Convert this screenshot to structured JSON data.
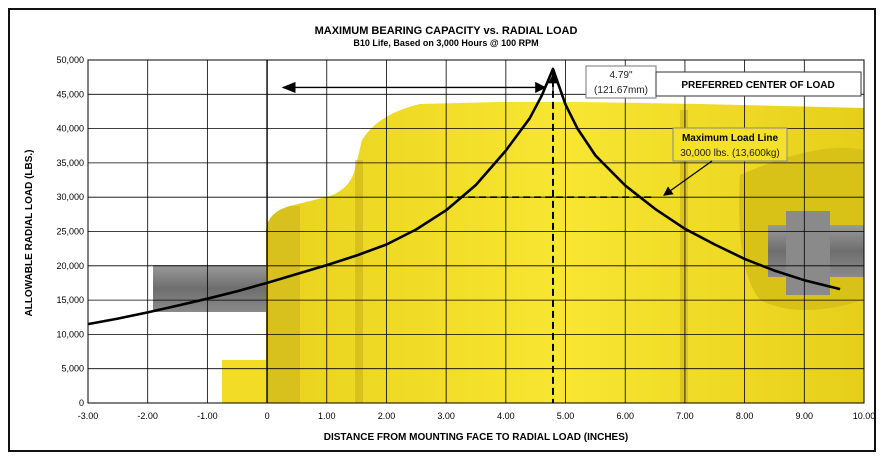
{
  "colors": {
    "yellow": "#f5e02a",
    "yellow_dark": "#c9b21a",
    "gray": "#7f7f7f",
    "curve": "#000000",
    "grid": "#000000"
  },
  "chart_data": {
    "type": "line",
    "title": "MAXIMUM BEARING CAPACITY vs. RADIAL LOAD",
    "subtitle": "B10 Life, Based on 3,000 Hours @ 100 RPM",
    "xlabel": "DISTANCE FROM MOUNTING FACE TO RADIAL LOAD (INCHES)",
    "ylabel": "ALLOWABLE RADIAL LOAD (LBS.)",
    "xlim": [
      -3.0,
      10.0
    ],
    "ylim": [
      0,
      50000
    ],
    "x_ticks": [
      -3.0,
      -2.0,
      -1.0,
      0.0,
      1.0,
      2.0,
      3.0,
      4.0,
      5.0,
      6.0,
      7.0,
      8.0,
      9.0,
      10.0
    ],
    "x_tick_labels": [
      "-3.00",
      "-2.00",
      "-1.00",
      "0",
      "1.00",
      "2.00",
      "3.00",
      "4.00",
      "5.00",
      "6.00",
      "7.00",
      "8.00",
      "9.00",
      "10.00"
    ],
    "y_ticks": [
      0,
      5000,
      10000,
      15000,
      20000,
      25000,
      30000,
      35000,
      40000,
      45000,
      50000
    ],
    "y_tick_labels": [
      "0",
      "5,000",
      "10,000",
      "15,000",
      "20,000",
      "25,000",
      "30,000",
      "35,000",
      "40,000",
      "45,000",
      "50,000"
    ],
    "grid": true,
    "series": [
      {
        "x": [
          -3.0,
          -2.5,
          -2.0,
          -1.5,
          -1.0,
          -0.5,
          0.0,
          0.5,
          1.0,
          1.5,
          2.0,
          2.5,
          3.0,
          3.5,
          4.0,
          4.4,
          4.6,
          4.79,
          5.0,
          5.2,
          5.5,
          6.0,
          6.5,
          7.0,
          7.5,
          8.0,
          8.5,
          9.0,
          9.6
        ],
        "y": [
          11500,
          12300,
          13200,
          14200,
          15200,
          16300,
          17500,
          18800,
          20100,
          21500,
          23100,
          25300,
          28100,
          31800,
          36800,
          41500,
          44800,
          48700,
          43500,
          40000,
          36100,
          31700,
          28300,
          25400,
          23100,
          21000,
          19300,
          17900,
          16600
        ]
      }
    ],
    "annotations": {
      "preferred_center": {
        "value_top": "4.79\"",
        "value_bottom": "(121.67mm)",
        "label": "PREFERRED CENTER OF LOAD",
        "x": 4.79
      },
      "max_load_line": {
        "label": "Maximum Load Line",
        "value": "30,000 lbs. (13,600kg)",
        "y": 30000,
        "x_from": 3.0,
        "x_to": 6.5
      },
      "arrow_target_x": 0.1
    }
  }
}
